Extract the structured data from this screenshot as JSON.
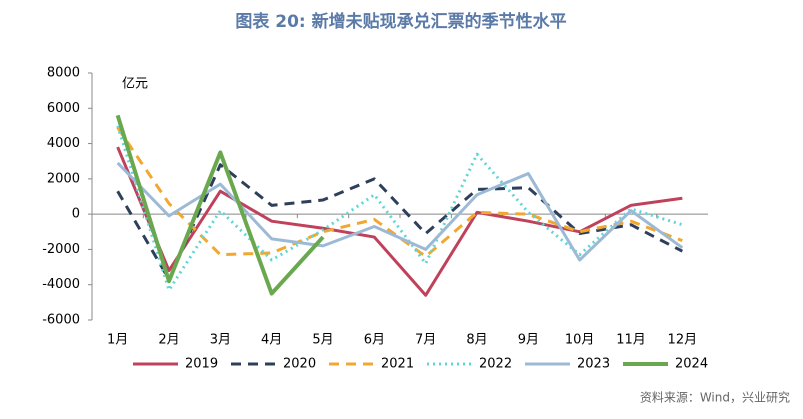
{
  "chart_data": {
    "type": "line",
    "title": "图表 20: 新增未贴现承兑汇票的季节性水平",
    "y_label": "亿元",
    "source": "资料来源：Wind，兴业研究",
    "categories": [
      "1月",
      "2月",
      "3月",
      "4月",
      "5月",
      "6月",
      "7月",
      "8月",
      "9月",
      "10月",
      "11月",
      "12月"
    ],
    "ylim": [
      -6000,
      8000
    ],
    "yticks": [
      -6000,
      -4000,
      -2000,
      0,
      2000,
      4000,
      6000,
      8000
    ],
    "legend": "bottom",
    "series": [
      {
        "name": "2019",
        "color": "#c0415b",
        "style": "solid",
        "values": [
          3800,
          -3200,
          1300,
          -400,
          -800,
          -1300,
          -4600,
          100,
          -400,
          -1000,
          500,
          900
        ]
      },
      {
        "name": "2020",
        "color": "#2e3f5c",
        "style": "dashed",
        "values": [
          1300,
          -3700,
          2800,
          500,
          800,
          2000,
          -1100,
          1400,
          1500,
          -1100,
          -600,
          -2100
        ]
      },
      {
        "name": "2021",
        "color": "#f0a830",
        "style": "dashed",
        "values": [
          4900,
          600,
          -2300,
          -2200,
          -1000,
          -300,
          -2400,
          100,
          0,
          -1000,
          -400,
          -1500
        ]
      },
      {
        "name": "2022",
        "color": "#5fd6d6",
        "style": "dotted",
        "values": [
          5000,
          -4300,
          200,
          -2600,
          -900,
          1100,
          -2800,
          3400,
          100,
          -2300,
          300,
          -600
        ]
      },
      {
        "name": "2023",
        "color": "#9cbad6",
        "style": "solid",
        "values": [
          2900,
          -100,
          1700,
          -1400,
          -1800,
          -700,
          -2000,
          1100,
          2300,
          -2600,
          200,
          -1900
        ]
      },
      {
        "name": "2024",
        "color": "#6aa84f",
        "style": "solid",
        "width": 4,
        "values": [
          5600,
          -3800,
          3500,
          -4500,
          -1300,
          null,
          null,
          null,
          null,
          null,
          null,
          null
        ]
      }
    ]
  }
}
